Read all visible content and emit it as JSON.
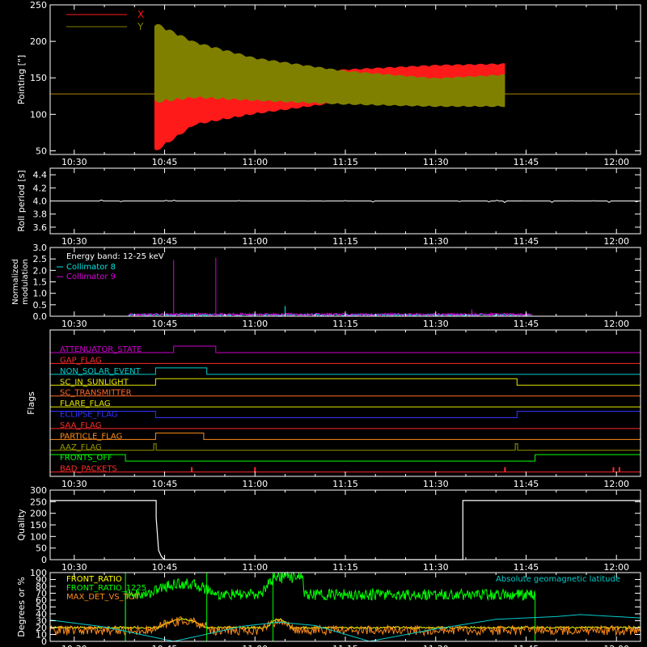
{
  "colors": {
    "background": "#000000",
    "axes": "#ffffff",
    "x_pointing": "#ff1a1a",
    "y_pointing": "#808000",
    "collimator_8": "#00e5e5",
    "collimator_9": "#e000e0",
    "front_ratio": "#ffff00",
    "front_ratio_1225": "#00ff00",
    "max_det_vs_tot": "#ff8c1a",
    "geomag": "#00cccc"
  },
  "time_axis": {
    "range_minutes": [
      26,
      124
    ],
    "ticks": [
      30,
      45,
      60,
      75,
      90,
      105,
      120
    ],
    "tick_labels": [
      "10:30",
      "10:45",
      "11:00",
      "11:15",
      "11:30",
      "11:45",
      "12:00"
    ]
  },
  "chart_data": [
    {
      "id": "pointing",
      "type": "line",
      "ylabel": "Pointing [\"]",
      "ylim": [
        45,
        250
      ],
      "y_ticks": [
        50,
        100,
        150,
        200,
        250
      ],
      "x_unit": "minutes after 10:00",
      "legend": [
        "X",
        "Y"
      ],
      "series": [
        {
          "name": "X",
          "color_key": "x_pointing",
          "baseline": 128,
          "oscillation_start_min": 43.3,
          "oscillation_end_min": 101.5,
          "points": [
            {
              "x": 43.5,
              "min": 48,
              "max": 150
            },
            {
              "x": 50,
              "min": 85,
              "max": 150
            },
            {
              "x": 60,
              "min": 100,
              "max": 155
            },
            {
              "x": 75,
              "min": 117,
              "max": 162
            },
            {
              "x": 90,
              "min": 124,
              "max": 168
            },
            {
              "x": 101.5,
              "min": 124,
              "max": 170
            }
          ]
        },
        {
          "name": "Y",
          "color_key": "y_pointing",
          "baseline": 128,
          "oscillation_start_min": 43.3,
          "oscillation_end_min": 101.5,
          "points": [
            {
              "x": 43.5,
              "min": 115,
              "max": 226
            },
            {
              "x": 50,
              "min": 122,
              "max": 200
            },
            {
              "x": 60,
              "min": 118,
              "max": 178
            },
            {
              "x": 75,
              "min": 113,
              "max": 160
            },
            {
              "x": 90,
              "min": 110,
              "max": 150
            },
            {
              "x": 101.5,
              "min": 110,
              "max": 155
            }
          ]
        }
      ]
    },
    {
      "id": "roll",
      "type": "line",
      "ylabel": "Roll period [s]",
      "ylim": [
        3.5,
        4.5
      ],
      "y_ticks": [
        3.6,
        3.8,
        4.0,
        4.2,
        4.4
      ],
      "y_tick_labels": [
        "3.6",
        "3.8",
        "4.0",
        "4.2",
        "4.4"
      ],
      "series": [
        {
          "name": "",
          "value": 4.0
        }
      ]
    },
    {
      "id": "modulation",
      "type": "line",
      "ylabel": "Normalized modulation",
      "ylim": [
        0,
        3.0
      ],
      "y_ticks": [
        0,
        0.5,
        1.0,
        1.5,
        2.0,
        2.5,
        3.0
      ],
      "y_tick_labels": [
        "0.0",
        "0.5",
        "1.0",
        "1.5",
        "2.0",
        "2.5",
        "3.0"
      ],
      "annotation": "Energy band: 12-25 keV",
      "legend": [
        "Collimator 8",
        "Collimator 9"
      ],
      "series": [
        {
          "name": "Collimator 8",
          "color_key": "collimator_8",
          "range_min": [
            39,
            106
          ],
          "level": 0.06,
          "spikes": [
            {
              "x": 65,
              "y": 0.45
            }
          ]
        },
        {
          "name": "Collimator 9",
          "color_key": "collimator_9",
          "range_min": [
            39,
            106
          ],
          "level": 0.08,
          "spikes": [
            {
              "x": 46.5,
              "y": 2.45
            },
            {
              "x": 53.5,
              "y": 2.55
            },
            {
              "x": 96,
              "y": 0.3
            }
          ]
        }
      ]
    },
    {
      "id": "flags",
      "type": "line",
      "ylabel": "Flags",
      "flags": [
        {
          "label": "ATTENUATOR_STATE",
          "color": "#cc00cc",
          "ones": [
            [
              46.5,
              53.5
            ]
          ]
        },
        {
          "label": "GAP_FLAG",
          "color": "#ff2a2a",
          "ones": []
        },
        {
          "label": "NON_SOLAR_EVENT",
          "color": "#00cccc",
          "ones": [
            [
              43.5,
              52
            ]
          ]
        },
        {
          "label": "SC_IN_SUNLIGHT",
          "color": "#e6e600",
          "ones": [
            [
              43.5,
              103.5
            ]
          ]
        },
        {
          "label": "SC_TRANSMITTER",
          "color": "#ff6a2a",
          "ones": []
        },
        {
          "label": "FLARE_FLAG",
          "color": "#e6e600",
          "ones": []
        },
        {
          "label": "ECLIPSE_FLAG",
          "color": "#3333ff",
          "ones": [
            [
              26,
              43.5
            ],
            [
              103.5,
              124
            ]
          ]
        },
        {
          "label": "SAA_FLAG",
          "color": "#ff2a2a",
          "ones": []
        },
        {
          "label": "PARTICLE_FLAG",
          "color": "#ff8c1a",
          "ones": [
            [
              43.5,
              51.5
            ]
          ]
        },
        {
          "label": "AAZ_FLAG",
          "color": "#999900",
          "ones": [
            [
              43.2,
              43.6
            ],
            [
              103.2,
              103.6
            ]
          ]
        },
        {
          "label": "FRONTS_OFF",
          "color": "#00ff00",
          "ones": [
            [
              26,
              38.5
            ],
            [
              106.5,
              124
            ]
          ]
        },
        {
          "label": "BAD_PACKETS",
          "color": "#ff2a2a",
          "ones": [],
          "ticks": [
            49.5,
            60,
            101.5,
            119.5,
            120.5
          ]
        }
      ]
    },
    {
      "id": "quality",
      "type": "line",
      "ylabel": "Quality",
      "ylim": [
        0,
        300
      ],
      "y_ticks": [
        0,
        50,
        100,
        150,
        200,
        250,
        300
      ],
      "series": [
        {
          "name": "",
          "points": [
            [
              26,
              255
            ],
            [
              43.6,
              255
            ],
            [
              43.6,
              180
            ],
            [
              44,
              40
            ],
            [
              44.5,
              12
            ],
            [
              45,
              0
            ],
            [
              94.5,
              0
            ],
            [
              94.5,
              255
            ],
            [
              124,
              255
            ]
          ]
        }
      ]
    },
    {
      "id": "ratios",
      "type": "line",
      "ylabel": "Degrees or %",
      "ylim": [
        0,
        100
      ],
      "y_ticks": [
        0,
        10,
        20,
        30,
        40,
        50,
        60,
        70,
        80,
        90,
        100
      ],
      "legend": [
        "FRONT_RATIO",
        "FRONT_RATIO_1225",
        "MAX_DET_VS_TOT"
      ],
      "right_annotation": "Absolute geomagnetic latitude",
      "series": [
        {
          "name": "FRONT_RATIO",
          "color_key": "front_ratio",
          "level": 20,
          "bumps": [
            {
              "x": 48,
              "w": 4,
              "h": 12
            },
            {
              "x": 64,
              "w": 2,
              "h": 12
            }
          ]
        },
        {
          "name": "FRONT_RATIO_1225",
          "color_key": "front_ratio_1225",
          "range_min": [
            38.5,
            106.5
          ],
          "level": 68,
          "bumps": [
            {
              "x": 48,
              "w": 6,
              "h": 16
            },
            {
              "x": 64,
              "w": 3,
              "h": 26
            }
          ]
        },
        {
          "name": "MAX_DET_VS_TOT",
          "color_key": "max_det_vs_tot",
          "level": 16,
          "bumps": [
            {
              "x": 48,
              "w": 5,
              "h": 14
            },
            {
              "x": 64,
              "w": 3,
              "h": 12
            }
          ]
        },
        {
          "name": "Absolute geomagnetic latitude",
          "color_key": "geomag",
          "points": [
            [
              26,
              31
            ],
            [
              35,
              21
            ],
            [
              46.5,
              0
            ],
            [
              58,
              22
            ],
            [
              64,
              28
            ],
            [
              70,
              23
            ],
            [
              79,
              0
            ],
            [
              90,
              18
            ],
            [
              100,
              32
            ],
            [
              110,
              36
            ],
            [
              114,
              39
            ],
            [
              124,
              34
            ]
          ]
        }
      ]
    }
  ]
}
